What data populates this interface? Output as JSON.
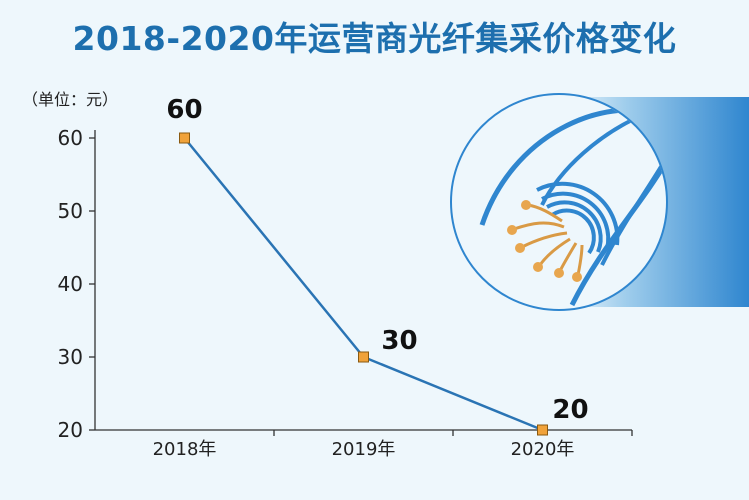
{
  "title": "2018-2020年运营商光纤集采价格变化",
  "unit_label": "（单位：元）",
  "colors": {
    "title": "#1d6fae",
    "line": "#2a74b4",
    "marker": "#f0a23a",
    "marker_border": "#8a5a10",
    "accent": "#2f86cf"
  },
  "icons": {
    "illustration": "fiber-optic-cable-icon"
  },
  "chart_data": {
    "type": "line",
    "categories": [
      "2018年",
      "2019年",
      "2020年"
    ],
    "values": [
      60,
      30,
      20
    ],
    "data_labels": [
      "60",
      "30",
      "20"
    ],
    "ylim": [
      20,
      60
    ],
    "yticks": [
      "20",
      "30",
      "40",
      "50",
      "60"
    ],
    "grid": false
  }
}
